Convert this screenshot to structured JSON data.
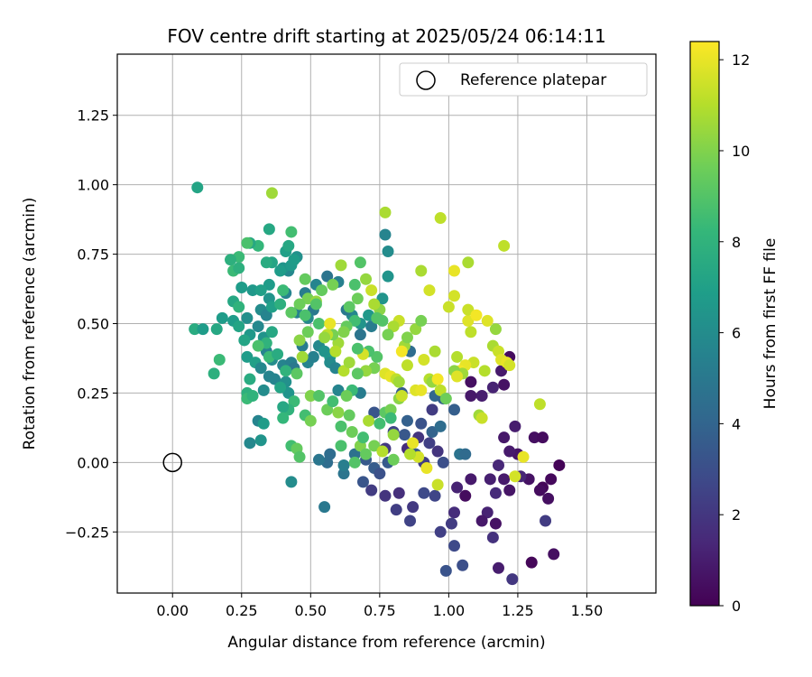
{
  "chart_data": {
    "type": "scatter",
    "title": "FOV centre drift starting at 2025/05/24 06:14:11",
    "xlabel": "Angular distance from reference (arcmin)",
    "ylabel": "Rotation from reference (arcmin)",
    "xlim": [
      -0.2,
      1.75
    ],
    "ylim": [
      -0.47,
      1.47
    ],
    "x_ticks": [
      "0.00",
      "0.25",
      "0.50",
      "0.75",
      "1.00",
      "1.25",
      "1.50"
    ],
    "y_ticks": [
      "−0.25",
      "0.00",
      "0.25",
      "0.50",
      "0.75",
      "1.00",
      "1.25"
    ],
    "grid": true,
    "colormap": "viridis",
    "colorbar": {
      "label": "Hours from first FF file",
      "range": [
        0,
        12.4
      ],
      "ticks": [
        "0",
        "2",
        "4",
        "6",
        "8",
        "10",
        "12"
      ]
    },
    "legend": {
      "position": "top-right",
      "entries": [
        "Reference platepar"
      ]
    },
    "reference_point": {
      "x": 0.0,
      "y": 0.0
    },
    "points": [
      [
        1.4,
        -0.01,
        0.1
      ],
      [
        1.37,
        -0.06,
        0.3
      ],
      [
        1.34,
        -0.09,
        0.2
      ],
      [
        1.36,
        -0.13,
        0.5
      ],
      [
        1.33,
        -0.1,
        0.4
      ],
      [
        1.29,
        -0.06,
        0.6
      ],
      [
        1.31,
        0.09,
        0.5
      ],
      [
        1.34,
        0.09,
        0.4
      ],
      [
        1.25,
        0.03,
        0.7
      ],
      [
        1.22,
        0.04,
        0.9
      ],
      [
        1.2,
        0.09,
        0.8
      ],
      [
        1.24,
        0.13,
        1.0
      ],
      [
        1.2,
        0.28,
        0.6
      ],
      [
        1.22,
        0.38,
        0.4
      ],
      [
        1.19,
        0.33,
        0.9
      ],
      [
        1.16,
        0.27,
        1.2
      ],
      [
        1.12,
        0.24,
        1.0
      ],
      [
        1.08,
        0.24,
        0.8
      ],
      [
        1.08,
        0.29,
        0.5
      ],
      [
        1.18,
        -0.01,
        1.4
      ],
      [
        1.15,
        -0.06,
        1.1
      ],
      [
        1.2,
        -0.06,
        0.9
      ],
      [
        1.22,
        -0.1,
        0.7
      ],
      [
        1.26,
        -0.05,
        1.3
      ],
      [
        1.17,
        -0.11,
        1.5
      ],
      [
        1.14,
        -0.18,
        1.2
      ],
      [
        1.17,
        -0.22,
        0.6
      ],
      [
        1.12,
        -0.21,
        0.8
      ],
      [
        1.16,
        -0.27,
        1.8
      ],
      [
        1.18,
        -0.38,
        1.0
      ],
      [
        1.23,
        -0.42,
        2.0
      ],
      [
        1.3,
        -0.36,
        0.2
      ],
      [
        1.35,
        -0.21,
        2.2
      ],
      [
        1.38,
        -0.33,
        0.5
      ],
      [
        1.08,
        -0.06,
        0.9
      ],
      [
        1.03,
        -0.09,
        1.2
      ],
      [
        1.06,
        -0.12,
        0.4
      ],
      [
        1.02,
        -0.18,
        1.6
      ],
      [
        1.01,
        -0.22,
        2.2
      ],
      [
        0.97,
        -0.25,
        2.4
      ],
      [
        1.02,
        -0.3,
        2.8
      ],
      [
        1.05,
        -0.37,
        3.0
      ],
      [
        0.99,
        -0.39,
        3.2
      ],
      [
        0.95,
        -0.12,
        2.6
      ],
      [
        0.91,
        -0.11,
        2.8
      ],
      [
        0.87,
        -0.16,
        2.1
      ],
      [
        0.86,
        -0.21,
        2.5
      ],
      [
        0.81,
        -0.17,
        2.3
      ],
      [
        0.82,
        -0.11,
        1.7
      ],
      [
        0.77,
        -0.12,
        1.9
      ],
      [
        0.72,
        -0.1,
        2.2
      ],
      [
        0.69,
        -0.07,
        3.3
      ],
      [
        0.73,
        -0.02,
        3.6
      ],
      [
        0.7,
        0.01,
        3.5
      ],
      [
        0.66,
        0.03,
        4.6
      ],
      [
        0.77,
        0.05,
        2.1
      ],
      [
        0.8,
        0.11,
        2.6
      ],
      [
        0.85,
        0.05,
        1.6
      ],
      [
        0.89,
        0.09,
        1.9
      ],
      [
        0.93,
        0.07,
        2.4
      ],
      [
        0.96,
        0.04,
        1.9
      ],
      [
        0.98,
        0.0,
        3.0
      ],
      [
        0.91,
        0.0,
        2.3
      ],
      [
        0.88,
        0.03,
        3.5
      ],
      [
        0.84,
        0.1,
        3.4
      ],
      [
        0.85,
        0.15,
        3.8
      ],
      [
        0.9,
        0.14,
        3.2
      ],
      [
        0.94,
        0.11,
        3.9
      ],
      [
        0.97,
        0.13,
        4.4
      ],
      [
        1.02,
        0.19,
        3.7
      ],
      [
        1.04,
        0.03,
        4.7
      ],
      [
        1.06,
        0.03,
        4.3
      ],
      [
        0.78,
        0.0,
        3.5
      ],
      [
        0.75,
        -0.04,
        3.1
      ],
      [
        0.73,
        0.18,
        3.3
      ],
      [
        0.83,
        0.25,
        3.6
      ],
      [
        0.86,
        0.4,
        4.4
      ],
      [
        0.95,
        0.24,
        4.1
      ],
      [
        0.98,
        0.23,
        3.9
      ],
      [
        0.94,
        0.19,
        2.2
      ],
      [
        0.55,
        -0.16,
        5.0
      ],
      [
        0.56,
        0.0,
        4.4
      ],
      [
        0.53,
        0.01,
        4.9
      ],
      [
        0.57,
        0.03,
        4.4
      ],
      [
        0.62,
        -0.04,
        4.8
      ],
      [
        0.62,
        -0.01,
        5.3
      ],
      [
        0.68,
        0.25,
        5.2
      ],
      [
        0.6,
        0.26,
        5.6
      ],
      [
        0.57,
        0.38,
        6.8
      ],
      [
        0.65,
        0.53,
        5.8
      ],
      [
        0.68,
        0.5,
        6.4
      ],
      [
        0.71,
        0.53,
        6.6
      ],
      [
        0.76,
        0.59,
        6.4
      ],
      [
        0.78,
        0.67,
        6.4
      ],
      [
        0.78,
        0.76,
        6.0
      ],
      [
        0.77,
        0.82,
        5.6
      ],
      [
        0.72,
        0.49,
        5.2
      ],
      [
        0.68,
        0.46,
        4.8
      ],
      [
        0.63,
        0.55,
        5.0
      ],
      [
        0.6,
        0.65,
        5.4
      ],
      [
        0.56,
        0.67,
        4.8
      ],
      [
        0.52,
        0.64,
        5.6
      ],
      [
        0.48,
        0.61,
        5.2
      ],
      [
        0.51,
        0.55,
        5.0
      ],
      [
        0.49,
        0.52,
        5.8
      ],
      [
        0.45,
        0.54,
        5.4
      ],
      [
        0.41,
        0.61,
        5.6
      ],
      [
        0.42,
        0.69,
        5.8
      ],
      [
        0.4,
        0.7,
        6.4
      ],
      [
        0.43,
        0.71,
        6.7
      ],
      [
        0.45,
        0.74,
        6.2
      ],
      [
        0.41,
        0.76,
        7.0
      ],
      [
        0.39,
        0.69,
        6.8
      ],
      [
        0.36,
        0.72,
        7.2
      ],
      [
        0.35,
        0.64,
        6.8
      ],
      [
        0.34,
        0.72,
        7.6
      ],
      [
        0.35,
        0.84,
        7.4
      ],
      [
        0.31,
        0.78,
        8.2
      ],
      [
        0.28,
        0.79,
        7.4
      ],
      [
        0.27,
        0.79,
        8.8
      ],
      [
        0.24,
        0.74,
        8.4
      ],
      [
        0.21,
        0.73,
        7.8
      ],
      [
        0.22,
        0.69,
        8.4
      ],
      [
        0.24,
        0.7,
        7.8
      ],
      [
        0.25,
        0.63,
        6.8
      ],
      [
        0.22,
        0.58,
        7.4
      ],
      [
        0.24,
        0.56,
        8.0
      ],
      [
        0.22,
        0.51,
        6.8
      ],
      [
        0.24,
        0.49,
        7.2
      ],
      [
        0.27,
        0.52,
        6.2
      ],
      [
        0.29,
        0.62,
        6.6
      ],
      [
        0.32,
        0.62,
        7.0
      ],
      [
        0.32,
        0.55,
        6.0
      ],
      [
        0.35,
        0.59,
        6.4
      ],
      [
        0.34,
        0.53,
        5.6
      ],
      [
        0.36,
        0.56,
        7.0
      ],
      [
        0.31,
        0.49,
        5.8
      ],
      [
        0.33,
        0.45,
        6.4
      ],
      [
        0.28,
        0.46,
        6.6
      ],
      [
        0.26,
        0.44,
        7.2
      ],
      [
        0.27,
        0.38,
        6.8
      ],
      [
        0.3,
        0.36,
        7.0
      ],
      [
        0.28,
        0.3,
        7.6
      ],
      [
        0.27,
        0.25,
        7.8
      ],
      [
        0.27,
        0.23,
        8.4
      ],
      [
        0.29,
        0.24,
        8.0
      ],
      [
        0.33,
        0.26,
        6.0
      ],
      [
        0.35,
        0.31,
        5.6
      ],
      [
        0.32,
        0.34,
        5.8
      ],
      [
        0.34,
        0.4,
        5.6
      ],
      [
        0.36,
        0.37,
        6.0
      ],
      [
        0.37,
        0.3,
        5.6
      ],
      [
        0.4,
        0.35,
        5.6
      ],
      [
        0.41,
        0.29,
        6.2
      ],
      [
        0.42,
        0.25,
        6.4
      ],
      [
        0.43,
        0.36,
        5.4
      ],
      [
        0.44,
        0.34,
        5.0
      ],
      [
        0.47,
        0.42,
        5.2
      ],
      [
        0.49,
        0.36,
        5.6
      ],
      [
        0.51,
        0.38,
        5.4
      ],
      [
        0.53,
        0.42,
        5.8
      ],
      [
        0.55,
        0.4,
        6.4
      ],
      [
        0.57,
        0.36,
        6.0
      ],
      [
        0.59,
        0.34,
        5.6
      ],
      [
        0.18,
        0.52,
        6.8
      ],
      [
        0.16,
        0.48,
        7.4
      ],
      [
        0.15,
        0.32,
        7.8
      ],
      [
        0.17,
        0.37,
        8.4
      ],
      [
        0.08,
        0.48,
        7.6
      ],
      [
        0.11,
        0.48,
        6.8
      ],
      [
        0.09,
        0.99,
        7.2
      ],
      [
        0.36,
        0.97,
        10.6
      ],
      [
        0.43,
        0.83,
        8.6
      ],
      [
        0.42,
        0.78,
        7.4
      ],
      [
        0.44,
        0.73,
        6.8
      ],
      [
        0.48,
        0.66,
        9.4
      ],
      [
        0.49,
        0.59,
        9.8
      ],
      [
        0.52,
        0.58,
        10.4
      ],
      [
        0.53,
        0.5,
        8.8
      ],
      [
        0.49,
        0.47,
        9.6
      ],
      [
        0.46,
        0.44,
        10.2
      ],
      [
        0.47,
        0.38,
        10.6
      ],
      [
        0.45,
        0.32,
        9.2
      ],
      [
        0.44,
        0.22,
        8.4
      ],
      [
        0.42,
        0.19,
        8.0
      ],
      [
        0.43,
        0.06,
        8.6
      ],
      [
        0.45,
        0.05,
        9.4
      ],
      [
        0.46,
        0.02,
        9.0
      ],
      [
        0.48,
        0.17,
        8.6
      ],
      [
        0.5,
        0.15,
        9.8
      ],
      [
        0.5,
        0.24,
        10.0
      ],
      [
        0.53,
        0.24,
        9.0
      ],
      [
        0.56,
        0.19,
        9.6
      ],
      [
        0.58,
        0.22,
        8.6
      ],
      [
        0.6,
        0.18,
        10.2
      ],
      [
        0.61,
        0.13,
        8.8
      ],
      [
        0.64,
        0.17,
        9.4
      ],
      [
        0.65,
        0.11,
        9.6
      ],
      [
        0.61,
        0.06,
        8.8
      ],
      [
        0.68,
        0.06,
        10.0
      ],
      [
        0.66,
        0.0,
        9.0
      ],
      [
        0.7,
        0.03,
        9.4
      ],
      [
        0.69,
        0.09,
        8.6
      ],
      [
        0.71,
        0.15,
        10.8
      ],
      [
        0.73,
        0.06,
        9.8
      ],
      [
        0.75,
        0.14,
        8.6
      ],
      [
        0.77,
        0.18,
        9.2
      ],
      [
        0.79,
        0.19,
        9.8
      ],
      [
        0.79,
        0.16,
        8.4
      ],
      [
        0.8,
        0.1,
        10.4
      ],
      [
        0.76,
        0.04,
        11.0
      ],
      [
        0.8,
        0.01,
        9.6
      ],
      [
        0.82,
        0.23,
        10.2
      ],
      [
        0.83,
        0.24,
        11.4
      ],
      [
        0.85,
        0.35,
        11.2
      ],
      [
        0.88,
        0.26,
        11.8
      ],
      [
        0.9,
        0.26,
        12.0
      ],
      [
        0.91,
        0.37,
        11.6
      ],
      [
        0.93,
        0.3,
        11.0
      ],
      [
        0.95,
        0.4,
        10.8
      ],
      [
        0.94,
        0.29,
        10.4
      ],
      [
        0.96,
        0.3,
        12.2
      ],
      [
        0.97,
        0.26,
        11.2
      ],
      [
        0.99,
        0.23,
        9.6
      ],
      [
        0.96,
        -0.08,
        11.4
      ],
      [
        0.92,
        -0.02,
        12.0
      ],
      [
        0.89,
        0.02,
        11.6
      ],
      [
        0.87,
        0.07,
        12.0
      ],
      [
        0.86,
        0.03,
        11.0
      ],
      [
        0.84,
        0.42,
        10.6
      ],
      [
        0.82,
        0.51,
        11.4
      ],
      [
        0.8,
        0.49,
        10.8
      ],
      [
        0.78,
        0.46,
        9.8
      ],
      [
        0.76,
        0.51,
        9.0
      ],
      [
        0.75,
        0.55,
        10.2
      ],
      [
        0.73,
        0.57,
        10.8
      ],
      [
        0.72,
        0.62,
        11.4
      ],
      [
        0.7,
        0.66,
        10.4
      ],
      [
        0.68,
        0.72,
        9.0
      ],
      [
        0.67,
        0.59,
        9.6
      ],
      [
        0.66,
        0.51,
        8.6
      ],
      [
        0.63,
        0.49,
        9.4
      ],
      [
        0.62,
        0.47,
        10.0
      ],
      [
        0.6,
        0.43,
        10.6
      ],
      [
        0.59,
        0.4,
        11.0
      ],
      [
        0.58,
        0.46,
        9.8
      ],
      [
        0.57,
        0.5,
        12.0
      ],
      [
        0.56,
        0.46,
        11.2
      ],
      [
        0.55,
        0.45,
        10.4
      ],
      [
        0.61,
        0.71,
        10.6
      ],
      [
        0.64,
        0.56,
        9.2
      ],
      [
        0.66,
        0.64,
        8.8
      ],
      [
        0.58,
        0.64,
        9.8
      ],
      [
        0.54,
        0.62,
        9.4
      ],
      [
        0.52,
        0.57,
        9.0
      ],
      [
        0.48,
        0.53,
        8.8
      ],
      [
        0.46,
        0.57,
        9.6
      ],
      [
        0.43,
        0.54,
        9.2
      ],
      [
        0.4,
        0.62,
        8.4
      ],
      [
        0.39,
        0.57,
        7.8
      ],
      [
        0.36,
        0.47,
        7.4
      ],
      [
        0.34,
        0.43,
        8.0
      ],
      [
        0.31,
        0.42,
        8.8
      ],
      [
        0.35,
        0.38,
        8.4
      ],
      [
        0.38,
        0.39,
        7.6
      ],
      [
        0.39,
        0.27,
        7.2
      ],
      [
        0.41,
        0.33,
        8.0
      ],
      [
        0.4,
        0.2,
        7.4
      ],
      [
        0.4,
        0.16,
        8.2
      ],
      [
        0.31,
        0.15,
        5.6
      ],
      [
        0.33,
        0.14,
        6.8
      ],
      [
        0.32,
        0.08,
        6.4
      ],
      [
        0.28,
        0.07,
        5.8
      ],
      [
        0.43,
        -0.07,
        6.0
      ],
      [
        0.85,
        0.45,
        10.0
      ],
      [
        0.88,
        0.48,
        10.4
      ],
      [
        0.9,
        0.51,
        9.8
      ],
      [
        0.9,
        0.69,
        10.8
      ],
      [
        0.93,
        0.62,
        11.6
      ],
      [
        0.97,
        0.88,
        11.2
      ],
      [
        1.0,
        0.56,
        11.4
      ],
      [
        1.02,
        0.69,
        12.0
      ],
      [
        1.02,
        0.6,
        11.6
      ],
      [
        1.07,
        0.51,
        11.8
      ],
      [
        1.07,
        0.55,
        11.4
      ],
      [
        1.07,
        0.72,
        10.8
      ],
      [
        1.08,
        0.47,
        11.2
      ],
      [
        1.1,
        0.53,
        12.2
      ],
      [
        1.14,
        0.51,
        11.8
      ],
      [
        1.17,
        0.48,
        10.4
      ],
      [
        1.2,
        0.78,
        11.2
      ],
      [
        1.16,
        0.42,
        10.8
      ],
      [
        1.18,
        0.4,
        11.4
      ],
      [
        1.19,
        0.37,
        11.8
      ],
      [
        1.21,
        0.36,
        12.0
      ],
      [
        1.22,
        0.35,
        11.6
      ],
      [
        1.13,
        0.33,
        11.0
      ],
      [
        1.09,
        0.36,
        11.4
      ],
      [
        1.06,
        0.35,
        12.0
      ],
      [
        1.04,
        0.33,
        12.2
      ],
      [
        1.03,
        0.38,
        11.0
      ],
      [
        1.05,
        0.32,
        10.6
      ],
      [
        1.02,
        0.33,
        10.2
      ],
      [
        1.03,
        0.31,
        11.8
      ],
      [
        1.11,
        0.17,
        10.6
      ],
      [
        1.12,
        0.16,
        11.4
      ],
      [
        1.24,
        -0.05,
        11.6
      ],
      [
        1.27,
        0.02,
        12.0
      ],
      [
        1.33,
        0.21,
        11.2
      ],
      [
        0.77,
        0.9,
        10.8
      ],
      [
        0.74,
        0.52,
        9.0
      ],
      [
        0.73,
        0.34,
        9.8
      ],
      [
        0.74,
        0.38,
        9.0
      ],
      [
        0.71,
        0.4,
        8.8
      ],
      [
        0.7,
        0.33,
        10.4
      ],
      [
        0.67,
        0.32,
        9.2
      ],
      [
        0.65,
        0.26,
        8.4
      ],
      [
        0.63,
        0.24,
        9.6
      ],
      [
        0.62,
        0.33,
        11.0
      ],
      [
        0.64,
        0.36,
        10.6
      ],
      [
        0.69,
        0.39,
        11.6
      ],
      [
        0.67,
        0.41,
        8.8
      ],
      [
        0.77,
        0.32,
        11.8
      ],
      [
        0.79,
        0.31,
        12.0
      ],
      [
        0.81,
        0.3,
        11.2
      ],
      [
        0.82,
        0.29,
        10.6
      ],
      [
        0.83,
        0.4,
        12.2
      ]
    ]
  }
}
